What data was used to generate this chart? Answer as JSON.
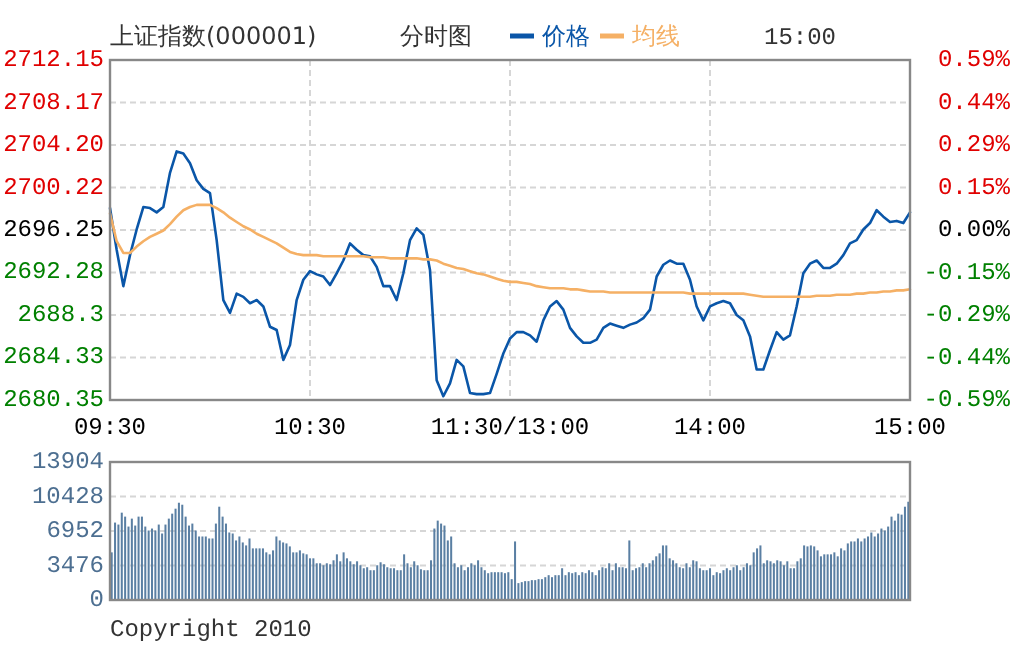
{
  "chart_data": [
    {
      "type": "line",
      "title": "上证指数(000001)",
      "subtitle": "分时图",
      "legend": "top",
      "grid": true,
      "annotations": [
        "15:00"
      ],
      "categories": [
        "09:30",
        null,
        null,
        null,
        null,
        null,
        null,
        null,
        null,
        null,
        null,
        null,
        null,
        null,
        null,
        null,
        null,
        null,
        null,
        null,
        null,
        null,
        null,
        null,
        null,
        null,
        null,
        null,
        null,
        null,
        "10:30",
        null,
        null,
        null,
        null,
        null,
        null,
        null,
        null,
        null,
        null,
        null,
        null,
        null,
        null,
        null,
        null,
        null,
        null,
        null,
        null,
        null,
        null,
        null,
        null,
        null,
        null,
        null,
        null,
        null,
        "11:30/13:00",
        null,
        null,
        null,
        null,
        null,
        null,
        null,
        null,
        null,
        null,
        null,
        null,
        null,
        null,
        null,
        null,
        null,
        null,
        null,
        null,
        null,
        null,
        null,
        null,
        null,
        null,
        null,
        null,
        null,
        "14:00",
        null,
        null,
        null,
        null,
        null,
        null,
        null,
        null,
        null,
        null,
        null,
        null,
        null,
        null,
        null,
        null,
        null,
        null,
        null,
        null,
        null,
        null,
        null,
        null,
        null,
        null,
        null,
        null,
        null,
        "15:00"
      ],
      "ylim": [
        2680.35,
        2712.15
      ],
      "yticks": [
        2680.35,
        2684.33,
        2688.3,
        {
          "value": 2692.28,
          "label": "2692.28"
        },
        2696.25,
        {
          "value": 2700.22,
          "label": "2700.22"
        },
        {
          "value": 2704.2,
          "label": "2704.20"
        },
        2708.17,
        2712.15
      ],
      "y2lim": [
        -0.59,
        0.59
      ],
      "y2ticks": [
        {
          "value": -0.59,
          "label": "-0.59%"
        },
        {
          "value": -0.4425,
          "label": "-0.44%"
        },
        {
          "value": -0.295,
          "label": "-0.29%"
        },
        {
          "value": -0.1475,
          "label": "-0.15%"
        },
        {
          "value": 0,
          "label": "0.00%"
        },
        {
          "value": 0.1475,
          "label": "0.15%"
        },
        {
          "value": 0.295,
          "label": "0.29%"
        },
        {
          "value": 0.4425,
          "label": "0.44%"
        },
        {
          "value": 0.59,
          "label": "0.59%"
        }
      ],
      "series": [
        {
          "name": "价格",
          "color": "#0a56a8",
          "values": [
            2698.3,
            2694.4,
            2691.0,
            2693.9,
            2696.3,
            2698.4,
            2698.3,
            2697.9,
            2698.4,
            2701.6,
            2703.6,
            2703.4,
            2702.5,
            2700.9,
            2700.1,
            2699.7,
            2695.3,
            2689.7,
            2688.5,
            2690.3,
            2690.0,
            2689.4,
            2689.7,
            2689.1,
            2687.2,
            2686.9,
            2684.1,
            2685.5,
            2689.7,
            2691.6,
            2692.4,
            2692.1,
            2691.9,
            2691.1,
            2692.2,
            2693.4,
            2695.0,
            2694.4,
            2693.9,
            2693.8,
            2692.8,
            2691.0,
            2691.0,
            2689.7,
            2692.2,
            2695.3,
            2696.4,
            2695.8,
            2692.5,
            2682.2,
            2680.7,
            2681.9,
            2684.1,
            2683.5,
            2681.0,
            2680.9,
            2680.9,
            2681.0,
            2682.8,
            2684.7,
            2686.1,
            2686.7,
            2686.7,
            2686.4,
            2685.8,
            2687.8,
            2689.1,
            2689.6,
            2688.8,
            2687.1,
            2686.3,
            2685.7,
            2685.7,
            2686.0,
            2687.1,
            2687.5,
            2687.3,
            2687.1,
            2687.4,
            2687.6,
            2688.0,
            2688.8,
            2691.9,
            2693.0,
            2693.4,
            2693.1,
            2693.1,
            2691.6,
            2689.1,
            2687.8,
            2689.1,
            2689.4,
            2689.6,
            2689.4,
            2688.3,
            2687.8,
            2686.3,
            2683.2,
            2683.2,
            2685.0,
            2686.7,
            2686.0,
            2686.4,
            2689.1,
            2692.2,
            2693.1,
            2693.4,
            2692.7,
            2692.7,
            2693.1,
            2693.9,
            2695.0,
            2695.3,
            2696.3,
            2696.9,
            2698.1,
            2697.5,
            2697.0,
            2697.1,
            2696.9,
            2697.9
          ]
        },
        {
          "name": "均线",
          "color": "#f5b065",
          "values": [
            2697.8,
            2695.2,
            2694.1,
            2694.1,
            2694.7,
            2695.2,
            2695.6,
            2695.9,
            2696.2,
            2696.8,
            2697.5,
            2698.1,
            2698.4,
            2698.6,
            2698.6,
            2698.6,
            2698.3,
            2697.9,
            2697.4,
            2697.0,
            2696.6,
            2696.3,
            2695.9,
            2695.6,
            2695.3,
            2695.0,
            2694.6,
            2694.2,
            2694.0,
            2693.9,
            2693.9,
            2693.9,
            2693.8,
            2693.8,
            2693.8,
            2693.8,
            2693.8,
            2693.8,
            2693.8,
            2693.7,
            2693.7,
            2693.7,
            2693.6,
            2693.6,
            2693.6,
            2693.6,
            2693.6,
            2693.5,
            2693.5,
            2693.4,
            2693.1,
            2692.9,
            2692.7,
            2692.6,
            2692.4,
            2692.2,
            2692.1,
            2691.9,
            2691.7,
            2691.5,
            2691.4,
            2691.4,
            2691.3,
            2691.2,
            2691.0,
            2690.9,
            2690.8,
            2690.8,
            2690.8,
            2690.7,
            2690.7,
            2690.6,
            2690.5,
            2690.5,
            2690.5,
            2690.4,
            2690.4,
            2690.4,
            2690.4,
            2690.4,
            2690.4,
            2690.4,
            2690.4,
            2690.4,
            2690.4,
            2690.4,
            2690.4,
            2690.3,
            2690.3,
            2690.3,
            2690.3,
            2690.3,
            2690.3,
            2690.3,
            2690.3,
            2690.3,
            2690.2,
            2690.1,
            2690.0,
            2690.0,
            2690.0,
            2690.0,
            2690.0,
            2690.0,
            2690.0,
            2690.0,
            2690.1,
            2690.1,
            2690.1,
            2690.2,
            2690.2,
            2690.2,
            2690.3,
            2690.3,
            2690.4,
            2690.4,
            2690.5,
            2690.5,
            2690.6,
            2690.6,
            2690.7
          ]
        }
      ]
    },
    {
      "type": "bar",
      "grid": "y",
      "tick_labels": "y",
      "annotations": [
        "Copyright 2010"
      ],
      "categories": [
        null,
        null,
        null,
        null,
        null,
        null,
        null,
        null,
        null,
        null,
        null,
        null,
        null,
        null,
        null,
        null,
        null,
        null,
        null,
        null,
        null,
        null,
        null,
        null,
        null,
        null,
        null,
        null,
        null,
        null,
        null,
        null,
        null,
        null,
        null,
        null,
        null,
        null,
        null,
        null,
        null,
        null,
        null,
        null,
        null,
        null,
        null,
        null,
        null,
        null,
        null,
        null,
        null,
        null,
        null,
        null,
        null,
        null,
        null,
        null,
        null,
        null,
        null,
        null,
        null,
        null,
        null,
        null,
        null,
        null,
        null,
        null,
        null,
        null,
        null,
        null,
        null,
        null,
        null,
        null,
        null,
        null,
        null,
        null,
        null,
        null,
        null,
        null,
        null,
        null,
        null,
        null,
        null,
        null,
        null,
        null,
        null,
        null,
        null,
        null,
        null,
        null,
        null,
        null,
        null,
        null,
        null,
        null,
        null,
        null,
        null,
        null,
        null,
        null,
        null,
        null,
        null,
        null,
        null,
        null,
        null,
        null,
        null,
        null,
        null,
        null,
        null,
        null,
        null,
        null,
        null,
        null,
        null,
        null,
        null,
        null,
        null,
        null,
        null,
        null,
        null,
        null,
        null,
        null,
        null,
        null,
        null,
        null,
        null,
        null,
        null,
        null,
        null,
        null,
        null,
        null,
        null,
        null,
        null,
        null,
        null,
        null,
        null,
        null,
        null,
        null,
        null,
        null,
        null,
        null,
        null,
        null,
        null,
        null,
        null,
        null,
        null,
        null,
        null,
        null,
        null,
        null,
        null,
        null,
        null,
        null,
        null,
        null,
        null,
        null,
        null,
        null,
        null,
        null,
        null,
        null,
        null,
        null,
        null,
        null,
        null,
        null,
        null,
        null,
        null,
        null,
        null,
        null,
        null,
        null,
        null,
        null,
        null,
        null,
        null,
        null,
        null,
        null,
        null,
        null,
        null,
        null,
        null,
        null,
        null,
        null,
        null,
        null,
        null,
        null,
        null,
        null,
        null,
        null,
        null,
        null,
        null,
        null
      ],
      "ylim": [
        0,
        13904
      ],
      "yticks": [
        0,
        3476,
        6952,
        10428,
        13904
      ],
      "series": [
        {
          "color": "#5a7fa3",
          "values": [
            4800,
            7800,
            7600,
            8800,
            8400,
            7400,
            8200,
            7500,
            8400,
            8400,
            7400,
            7000,
            7200,
            7000,
            7600,
            6700,
            7600,
            8200,
            8700,
            9200,
            9800,
            9600,
            8400,
            7500,
            7700,
            7000,
            6400,
            6400,
            6400,
            6200,
            6200,
            7700,
            9400,
            8400,
            7700,
            6800,
            6700,
            6000,
            6400,
            5800,
            5500,
            6200,
            5200,
            5200,
            5200,
            5200,
            4800,
            4600,
            5000,
            6400,
            6000,
            5800,
            5700,
            5400,
            4800,
            4800,
            5000,
            4700,
            4600,
            4200,
            4200,
            3700,
            3700,
            3500,
            3700,
            3600,
            4000,
            4600,
            3900,
            4800,
            4200,
            3900,
            3600,
            3900,
            3500,
            3200,
            3300,
            3000,
            3000,
            3500,
            3800,
            3600,
            3300,
            3200,
            3200,
            3000,
            3000,
            4600,
            3700,
            3300,
            3900,
            3500,
            3100,
            3000,
            3000,
            4000,
            7200,
            8000,
            7700,
            7500,
            6000,
            6400,
            3700,
            3300,
            3500,
            3000,
            3300,
            3700,
            3500,
            4000,
            3300,
            3000,
            2700,
            2800,
            2800,
            2800,
            2800,
            2700,
            2800,
            2100,
            5900,
            1700,
            1800,
            1900,
            1900,
            2000,
            2000,
            2100,
            2100,
            2300,
            2500,
            2300,
            2500,
            2500,
            3200,
            2500,
            2800,
            2700,
            2800,
            2500,
            2800,
            2700,
            3000,
            2800,
            2500,
            3000,
            3300,
            3200,
            3700,
            3000,
            3700,
            3300,
            3300,
            3200,
            6000,
            3000,
            3200,
            3300,
            3700,
            3300,
            3700,
            4000,
            4400,
            4700,
            5500,
            5500,
            4200,
            4000,
            3700,
            3300,
            3200,
            3700,
            3300,
            4000,
            3900,
            3200,
            3000,
            3000,
            3200,
            2500,
            2800,
            2700,
            3000,
            3200,
            3000,
            3300,
            3500,
            3000,
            3300,
            3700,
            3500,
            4800,
            5200,
            5500,
            3700,
            4000,
            3900,
            3700,
            4000,
            3900,
            3500,
            3900,
            3200,
            3200,
            3900,
            4200,
            5500,
            5400,
            5500,
            5400,
            5000,
            4400,
            4600,
            4600,
            4600,
            4800,
            4400,
            5200,
            5000,
            5700,
            5900,
            5900,
            6200,
            5900,
            6200,
            6400,
            6800,
            6400,
            6700,
            7200,
            7000,
            7400,
            8400,
            8000,
            8700,
            8600,
            9400,
            9900
          ]
        }
      ]
    }
  ]
}
